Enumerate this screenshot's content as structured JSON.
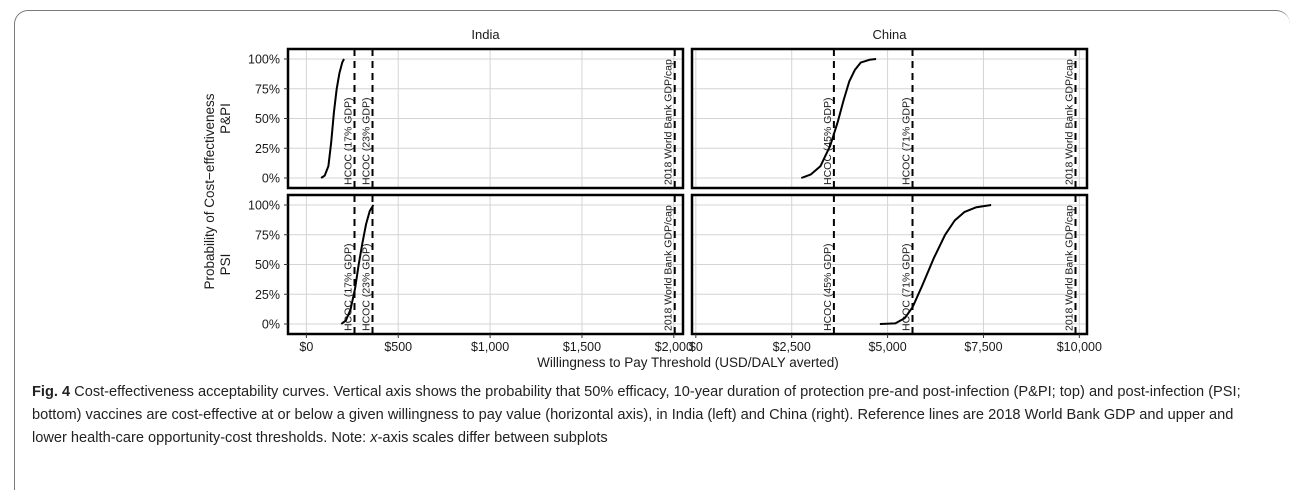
{
  "chart_data": {
    "type": "line",
    "panels_layout": "2x2 facet grid",
    "y_axis_title": "Probability of Cost−effectiveness",
    "x_axis_title": "Willingness to Pay Threshold (USD/DALY averted)",
    "y_ticks": [
      "0%",
      "25%",
      "50%",
      "75%",
      "100%"
    ],
    "y_values": [
      0,
      0.25,
      0.5,
      0.75,
      1.0
    ],
    "ylim": [
      0,
      1
    ],
    "grid": true,
    "columns": [
      {
        "label": "India",
        "xlim": [
          -100,
          2050
        ],
        "x_ticks": [
          0,
          500,
          1000,
          1500,
          2000
        ],
        "x_tick_labels": [
          "$0",
          "$500",
          "$1,000",
          "$1,500",
          "$2,000"
        ],
        "reference_lines": [
          {
            "x": 262,
            "label": "HCOC (17% GDP)"
          },
          {
            "x": 360,
            "label": "HCOC (23% GDP)"
          },
          {
            "x": 2005,
            "label": "2018 World Bank GDP/cap"
          }
        ]
      },
      {
        "label": "China",
        "xlim": [
          -100,
          10200
        ],
        "x_ticks": [
          0,
          2500,
          5000,
          7500,
          10000
        ],
        "x_tick_labels": [
          "$0",
          "$2,500",
          "$5,000",
          "$7,500",
          "$10,000"
        ],
        "reference_lines": [
          {
            "x": 3600,
            "label": "HCOC (45% GDP)"
          },
          {
            "x": 5650,
            "label": "HCOC (71% GDP)"
          },
          {
            "x": 9900,
            "label": "2018 World Bank GDP/cap"
          }
        ]
      }
    ],
    "rows": [
      {
        "label": "P&PI",
        "curves": [
          {
            "column": "India",
            "x": [
              80,
              100,
              120,
              135,
              150,
              165,
              180,
              195,
              205
            ],
            "y": [
              0.0,
              0.02,
              0.1,
              0.3,
              0.55,
              0.75,
              0.88,
              0.97,
              1.0
            ]
          },
          {
            "column": "China",
            "x": [
              2750,
              3000,
              3250,
              3500,
              3700,
              3850,
              4000,
              4150,
              4300,
              4550,
              4700
            ],
            "y": [
              0.0,
              0.03,
              0.1,
              0.27,
              0.47,
              0.65,
              0.81,
              0.91,
              0.97,
              0.995,
              1.0
            ]
          }
        ]
      },
      {
        "label": "PSI",
        "curves": [
          {
            "column": "India",
            "x": [
              190,
              215,
              240,
              265,
              285,
              305,
              325,
              345,
              365
            ],
            "y": [
              0.0,
              0.03,
              0.12,
              0.3,
              0.5,
              0.68,
              0.84,
              0.95,
              1.0
            ]
          },
          {
            "column": "China",
            "x": [
              4800,
              5200,
              5450,
              5650,
              5900,
              6200,
              6500,
              6750,
              7000,
              7300,
              7700
            ],
            "y": [
              0.0,
              0.005,
              0.05,
              0.14,
              0.32,
              0.55,
              0.75,
              0.87,
              0.94,
              0.98,
              1.0
            ]
          }
        ]
      }
    ],
    "colors": {
      "line": "#000000",
      "grid": "#d4d4d4",
      "panel_border": "#000000",
      "ref_line": "#000000"
    }
  },
  "caption": {
    "fig_label": "Fig. 4",
    "part1": " Cost-effectiveness acceptability curves. Vertical axis shows the probability that 50% efficacy, 10-year duration of protection pre-and post-infection (P&PI; top) and post-infection (PSI; bottom) vaccines are cost-effective at or below a given willingness to pay value (horizontal axis), in India (left) and China (right). Reference lines are 2018 World Bank GDP and upper and lower health-care opportunity-cost thresholds. Note: ",
    "x_italic": "x",
    "part2": "-axis scales differ between subplots"
  }
}
